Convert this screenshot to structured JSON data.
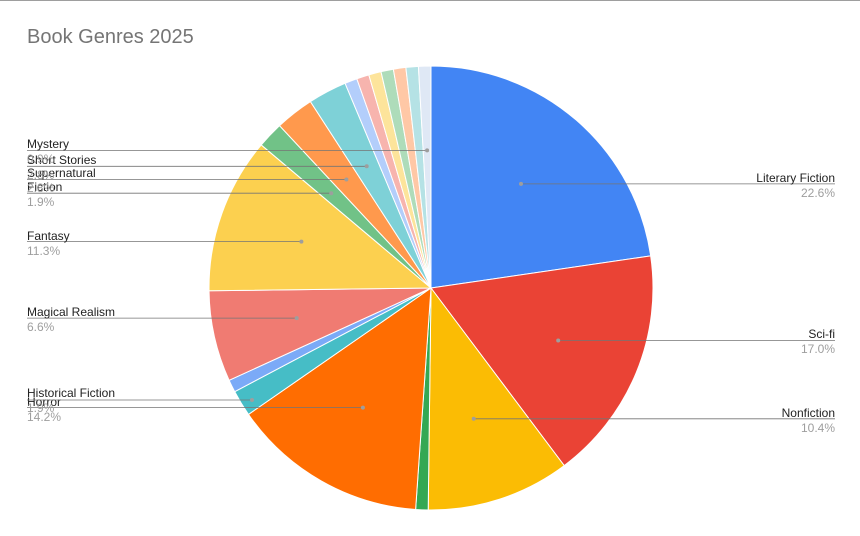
{
  "chart_data": {
    "type": "pie",
    "title": "Book Genres 2025",
    "start": "12 o'clock",
    "direction": "clockwise",
    "slices": [
      {
        "label": "Literary Fiction",
        "value": 22.6,
        "pct_text": "22.6%",
        "color": "#4285f4",
        "labeled": true
      },
      {
        "label": "Sci-fi",
        "value": 17.0,
        "pct_text": "17.0%",
        "color": "#ea4335",
        "labeled": true
      },
      {
        "label": "Nonfiction",
        "value": 10.4,
        "pct_text": "10.4%",
        "color": "#fbbc04",
        "labeled": true
      },
      {
        "label": "",
        "value": 0.9,
        "pct_text": "",
        "color": "#34a853",
        "labeled": false
      },
      {
        "label": "Horror",
        "value": 14.2,
        "pct_text": "14.2%",
        "color": "#ff6d01",
        "labeled": true
      },
      {
        "label": "",
        "value": 1.9,
        "pct_text": "",
        "color": "#46bdc6",
        "labeled": false
      },
      {
        "label": "",
        "value": 0.9,
        "pct_text": "",
        "color": "#7baaf7",
        "labeled": false
      },
      {
        "label": "Magical Realism",
        "value": 6.6,
        "pct_text": "6.6%",
        "color": "#f07b72",
        "labeled": true
      },
      {
        "label": "Fantasy",
        "value": 11.3,
        "pct_text": "11.3%",
        "color": "#fcd04f",
        "labeled": true
      },
      {
        "label": "Fiction",
        "value": 1.9,
        "pct_text": "1.9%",
        "color": "#71c287",
        "labeled": true
      },
      {
        "label": "Supernatural",
        "value": 2.8,
        "pct_text": "2.8%",
        "color": "#ff994d",
        "labeled": true
      },
      {
        "label": "Short Stories",
        "value": 2.8,
        "pct_text": "2.8%",
        "color": "#7ed1d7",
        "labeled": true
      },
      {
        "label": "",
        "value": 0.9,
        "pct_text": "",
        "color": "#b3cefb",
        "labeled": false
      },
      {
        "label": "",
        "value": 0.9,
        "pct_text": "",
        "color": "#f7b4ae",
        "labeled": false
      },
      {
        "label": "",
        "value": 0.9,
        "pct_text": "",
        "color": "#fde49b",
        "labeled": false
      },
      {
        "label": "",
        "value": 0.9,
        "pct_text": "",
        "color": "#aedcba",
        "labeled": false
      },
      {
        "label": "",
        "value": 0.9,
        "pct_text": "",
        "color": "#ffc8a6",
        "labeled": false
      },
      {
        "label": "",
        "value": 0.9,
        "pct_text": "",
        "color": "#b5e2e5",
        "labeled": false
      },
      {
        "label": "Mystery",
        "value": 0.9,
        "pct_text": "0.9%",
        "color": "#dfe8f5",
        "labeled": true
      }
    ],
    "additional_labels": [
      {
        "label": "Historical Fiction",
        "pct_text": "1.9%"
      }
    ]
  }
}
